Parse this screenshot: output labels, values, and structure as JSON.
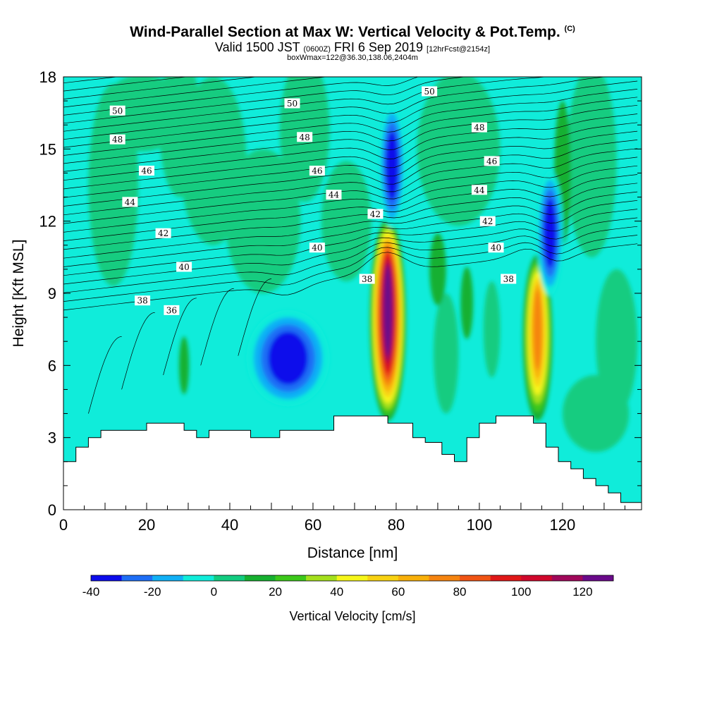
{
  "chart_data": {
    "type": "heatmap",
    "title": "Wind-Parallel Section at Max W: Vertical Velocity & Pot.Temp.",
    "title_mark": "(C)",
    "subtitle_main": "Valid 1500 JST",
    "subtitle_utc": "(0600Z)",
    "subtitle_date": "FRI 6 Sep 2019",
    "subtitle_fcst": "[12hrFcst@2154z]",
    "subtitle2": "boxWmax=122@36.30,138.06,2404m",
    "xlabel": "Distance [nm]",
    "ylabel": "Height [Kft MSL]",
    "xlim": [
      0,
      139
    ],
    "ylim": [
      0,
      18
    ],
    "x_ticks": [
      "0",
      "20",
      "40",
      "60",
      "80",
      "100",
      "120"
    ],
    "y_ticks": [
      "0",
      "3",
      "6",
      "9",
      "12",
      "15",
      "18"
    ],
    "colorbar": {
      "label": "Vertical Velocity [cm/s]",
      "range": [
        -40,
        130
      ],
      "step": 10,
      "tick_labels": [
        "-40",
        "-20",
        "0",
        "20",
        "40",
        "60",
        "80",
        "100",
        "120"
      ],
      "colors": [
        "#0c0ceb",
        "#1e6ef5",
        "#11b0f5",
        "#10ecda",
        "#12cc80",
        "#16b030",
        "#3cc81a",
        "#a4e01c",
        "#f6f61a",
        "#f8d212",
        "#f8b00a",
        "#f58410",
        "#f05414",
        "#e01818",
        "#d0082c",
        "#a0085a",
        "#6a0a8a"
      ]
    },
    "velocity_features": [
      {
        "kind": "updraft",
        "x": 78,
        "z_bottom": 4.0,
        "z_top": 11.8,
        "w_max": 122
      },
      {
        "kind": "updraft",
        "x": 114,
        "z_bottom": 4.0,
        "z_top": 10.3,
        "w_max": 70
      },
      {
        "kind": "downdraft",
        "x": 54,
        "z": 6.3,
        "w_min": -40
      },
      {
        "kind": "downdraft",
        "x": 79,
        "z": 14.3,
        "w_min": -35
      },
      {
        "kind": "downdraft",
        "x": 117,
        "z": 11.5,
        "w_min": -35
      }
    ],
    "theta_contour_labels": [
      {
        "value": "50",
        "x": 13,
        "z": 16.6
      },
      {
        "value": "48",
        "x": 13,
        "z": 15.4
      },
      {
        "value": "46",
        "x": 20,
        "z": 14.1
      },
      {
        "value": "44",
        "x": 16,
        "z": 12.8
      },
      {
        "value": "42",
        "x": 24,
        "z": 11.5
      },
      {
        "value": "40",
        "x": 29,
        "z": 10.1
      },
      {
        "value": "38",
        "x": 19,
        "z": 8.7
      },
      {
        "value": "36",
        "x": 26,
        "z": 8.3
      },
      {
        "value": "50",
        "x": 55,
        "z": 16.9
      },
      {
        "value": "48",
        "x": 58,
        "z": 15.5
      },
      {
        "value": "46",
        "x": 61,
        "z": 14.1
      },
      {
        "value": "44",
        "x": 65,
        "z": 13.1
      },
      {
        "value": "42",
        "x": 75,
        "z": 12.3
      },
      {
        "value": "40",
        "x": 61,
        "z": 10.9
      },
      {
        "value": "38",
        "x": 73,
        "z": 9.6
      },
      {
        "value": "50",
        "x": 88,
        "z": 17.4
      },
      {
        "value": "48",
        "x": 100,
        "z": 15.9
      },
      {
        "value": "46",
        "x": 103,
        "z": 14.5
      },
      {
        "value": "44",
        "x": 100,
        "z": 13.3
      },
      {
        "value": "42",
        "x": 102,
        "z": 12.0
      },
      {
        "value": "40",
        "x": 104,
        "z": 10.9
      },
      {
        "value": "38",
        "x": 107,
        "z": 9.6
      }
    ],
    "terrain": [
      [
        0,
        2.0
      ],
      [
        3,
        2.0
      ],
      [
        3,
        2.6
      ],
      [
        6,
        2.6
      ],
      [
        6,
        3.0
      ],
      [
        9,
        3.0
      ],
      [
        9,
        3.3
      ],
      [
        20,
        3.3
      ],
      [
        20,
        3.6
      ],
      [
        29,
        3.6
      ],
      [
        29,
        3.3
      ],
      [
        32,
        3.3
      ],
      [
        32,
        3.0
      ],
      [
        35,
        3.0
      ],
      [
        35,
        3.3
      ],
      [
        45,
        3.3
      ],
      [
        45,
        3.0
      ],
      [
        52,
        3.0
      ],
      [
        52,
        3.3
      ],
      [
        65,
        3.3
      ],
      [
        65,
        3.9
      ],
      [
        78,
        3.9
      ],
      [
        78,
        3.6
      ],
      [
        84,
        3.6
      ],
      [
        84,
        3.0
      ],
      [
        87,
        3.0
      ],
      [
        87,
        2.8
      ],
      [
        91,
        2.8
      ],
      [
        91,
        2.3
      ],
      [
        94,
        2.3
      ],
      [
        94,
        2.0
      ],
      [
        97,
        2.0
      ],
      [
        97,
        3.0
      ],
      [
        100,
        3.0
      ],
      [
        100,
        3.6
      ],
      [
        104,
        3.6
      ],
      [
        104,
        3.9
      ],
      [
        113,
        3.9
      ],
      [
        113,
        3.6
      ],
      [
        116,
        3.6
      ],
      [
        116,
        2.6
      ],
      [
        119,
        2.6
      ],
      [
        119,
        2.0
      ],
      [
        122,
        2.0
      ],
      [
        122,
        1.7
      ],
      [
        125,
        1.7
      ],
      [
        125,
        1.3
      ],
      [
        128,
        1.3
      ],
      [
        128,
        1.0
      ],
      [
        131,
        1.0
      ],
      [
        131,
        0.7
      ],
      [
        134,
        0.7
      ],
      [
        134,
        0.3
      ],
      [
        139,
        0.3
      ]
    ]
  }
}
